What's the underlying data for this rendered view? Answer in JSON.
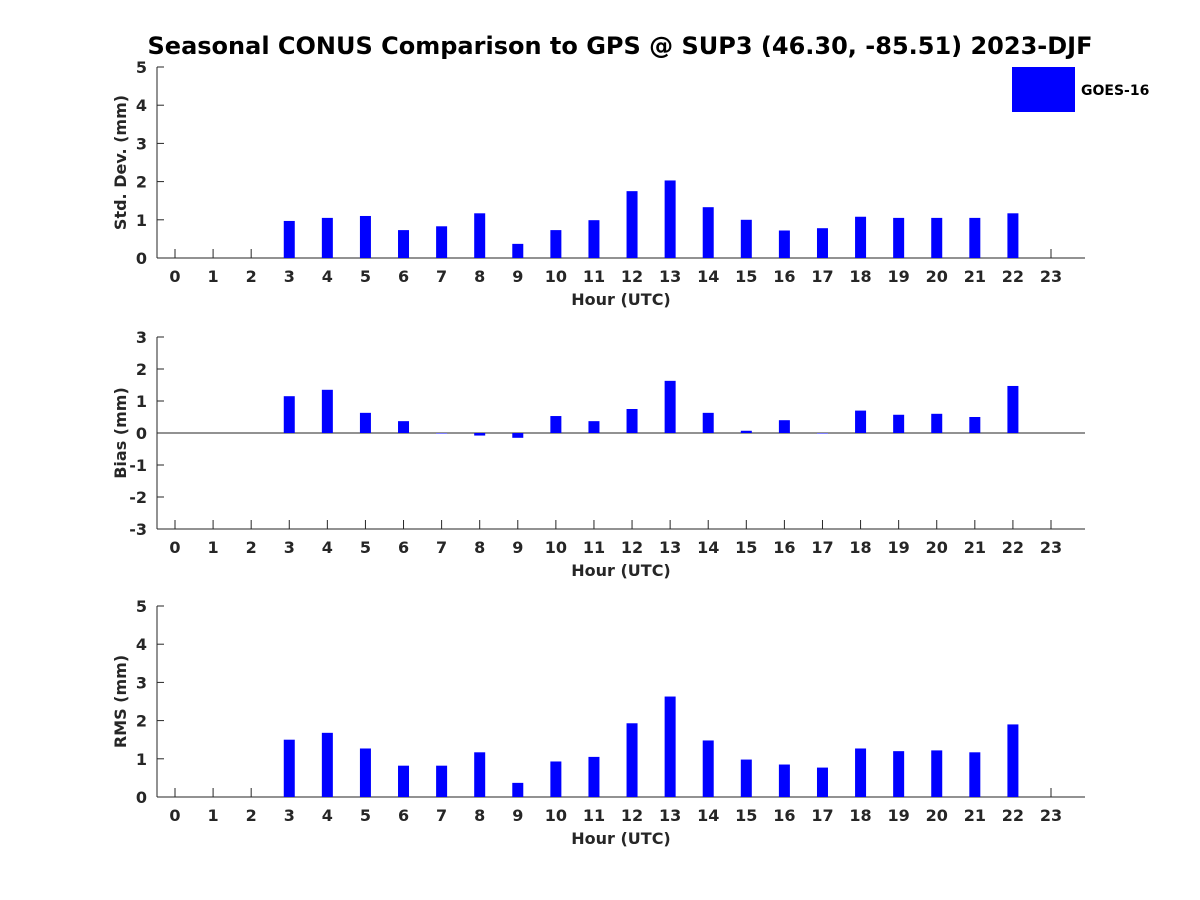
{
  "title": "Seasonal CONUS Comparison to GPS @ SUP3 (46.30, -85.51) 2023-DJF",
  "legend": {
    "label": "GOES-16",
    "color": "#0000ff",
    "placement": "top-right"
  },
  "chart_data": [
    {
      "type": "bar",
      "xlabel": "Hour (UTC)",
      "ylabel": "Std. Dev. (mm)",
      "ylim": [
        0,
        5
      ],
      "yticks": [
        0,
        1,
        2,
        3,
        4,
        5
      ],
      "categories": [
        "0",
        "1",
        "2",
        "3",
        "4",
        "5",
        "6",
        "7",
        "8",
        "9",
        "10",
        "11",
        "12",
        "13",
        "14",
        "15",
        "16",
        "17",
        "18",
        "19",
        "20",
        "21",
        "22",
        "23"
      ],
      "series": [
        {
          "name": "GOES-16",
          "color": "#0000ff",
          "values": [
            null,
            null,
            null,
            0.97,
            1.05,
            1.1,
            0.73,
            0.83,
            1.17,
            0.37,
            0.73,
            0.99,
            1.75,
            2.03,
            1.33,
            1.0,
            0.72,
            0.78,
            1.08,
            1.05,
            1.05,
            1.05,
            1.17,
            null
          ]
        }
      ],
      "grid": false
    },
    {
      "type": "bar",
      "xlabel": "Hour (UTC)",
      "ylabel": "Bias (mm)",
      "ylim": [
        -3,
        3
      ],
      "yticks": [
        -3,
        -2,
        -1,
        0,
        1,
        2,
        3
      ],
      "categories": [
        "0",
        "1",
        "2",
        "3",
        "4",
        "5",
        "6",
        "7",
        "8",
        "9",
        "10",
        "11",
        "12",
        "13",
        "14",
        "15",
        "16",
        "17",
        "18",
        "19",
        "20",
        "21",
        "22",
        "23"
      ],
      "series": [
        {
          "name": "GOES-16",
          "color": "#0000ff",
          "values": [
            null,
            null,
            null,
            1.15,
            1.35,
            0.63,
            0.37,
            0.0,
            -0.08,
            -0.15,
            0.53,
            0.37,
            0.75,
            1.63,
            0.63,
            0.07,
            0.4,
            0.0,
            0.7,
            0.57,
            0.6,
            0.5,
            1.47,
            null
          ]
        }
      ],
      "grid": false
    },
    {
      "type": "bar",
      "xlabel": "Hour (UTC)",
      "ylabel": "RMS (mm)",
      "ylim": [
        0,
        5
      ],
      "yticks": [
        0,
        1,
        2,
        3,
        4,
        5
      ],
      "categories": [
        "0",
        "1",
        "2",
        "3",
        "4",
        "5",
        "6",
        "7",
        "8",
        "9",
        "10",
        "11",
        "12",
        "13",
        "14",
        "15",
        "16",
        "17",
        "18",
        "19",
        "20",
        "21",
        "22",
        "23"
      ],
      "series": [
        {
          "name": "GOES-16",
          "color": "#0000ff",
          "values": [
            null,
            null,
            null,
            1.5,
            1.68,
            1.27,
            0.82,
            0.82,
            1.17,
            0.37,
            0.93,
            1.05,
            1.93,
            2.63,
            1.48,
            0.98,
            0.85,
            0.77,
            1.27,
            1.2,
            1.22,
            1.17,
            1.9,
            null
          ]
        }
      ],
      "grid": false
    }
  ]
}
